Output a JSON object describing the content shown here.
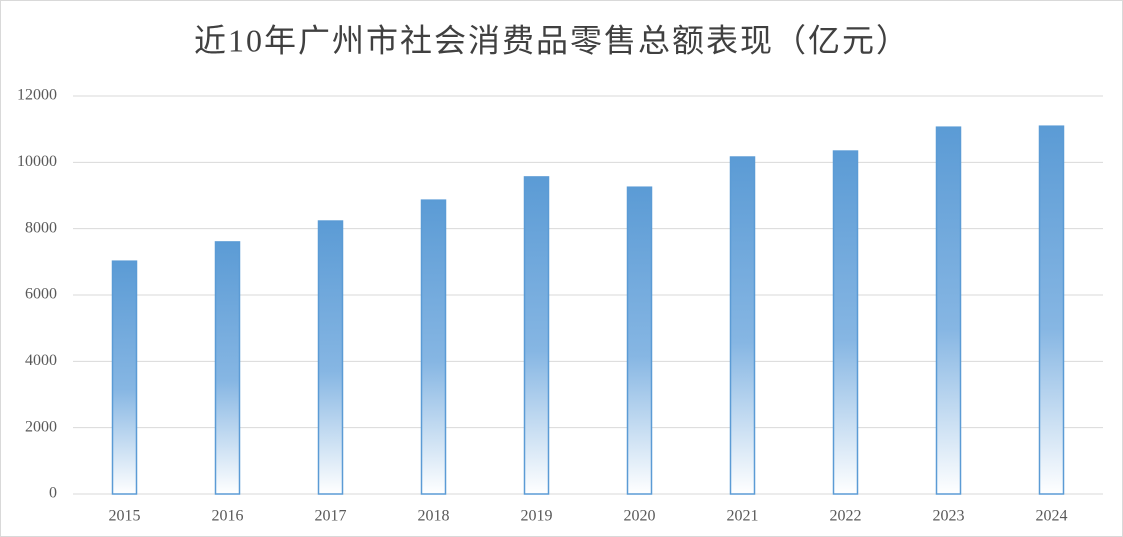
{
  "chart_data": {
    "type": "bar",
    "title": "近10年广州市社会消费品零售总额表现（亿元）",
    "categories": [
      "2015",
      "2016",
      "2017",
      "2018",
      "2019",
      "2020",
      "2021",
      "2022",
      "2023",
      "2024"
    ],
    "values": [
      7020,
      7600,
      8230,
      8860,
      9560,
      9250,
      10160,
      10340,
      11060,
      11090
    ],
    "color": "#5b9bd5",
    "ylim": [
      0,
      12000
    ],
    "yticks": [
      0,
      2000,
      4000,
      6000,
      8000,
      10000,
      12000
    ],
    "grid": true
  }
}
